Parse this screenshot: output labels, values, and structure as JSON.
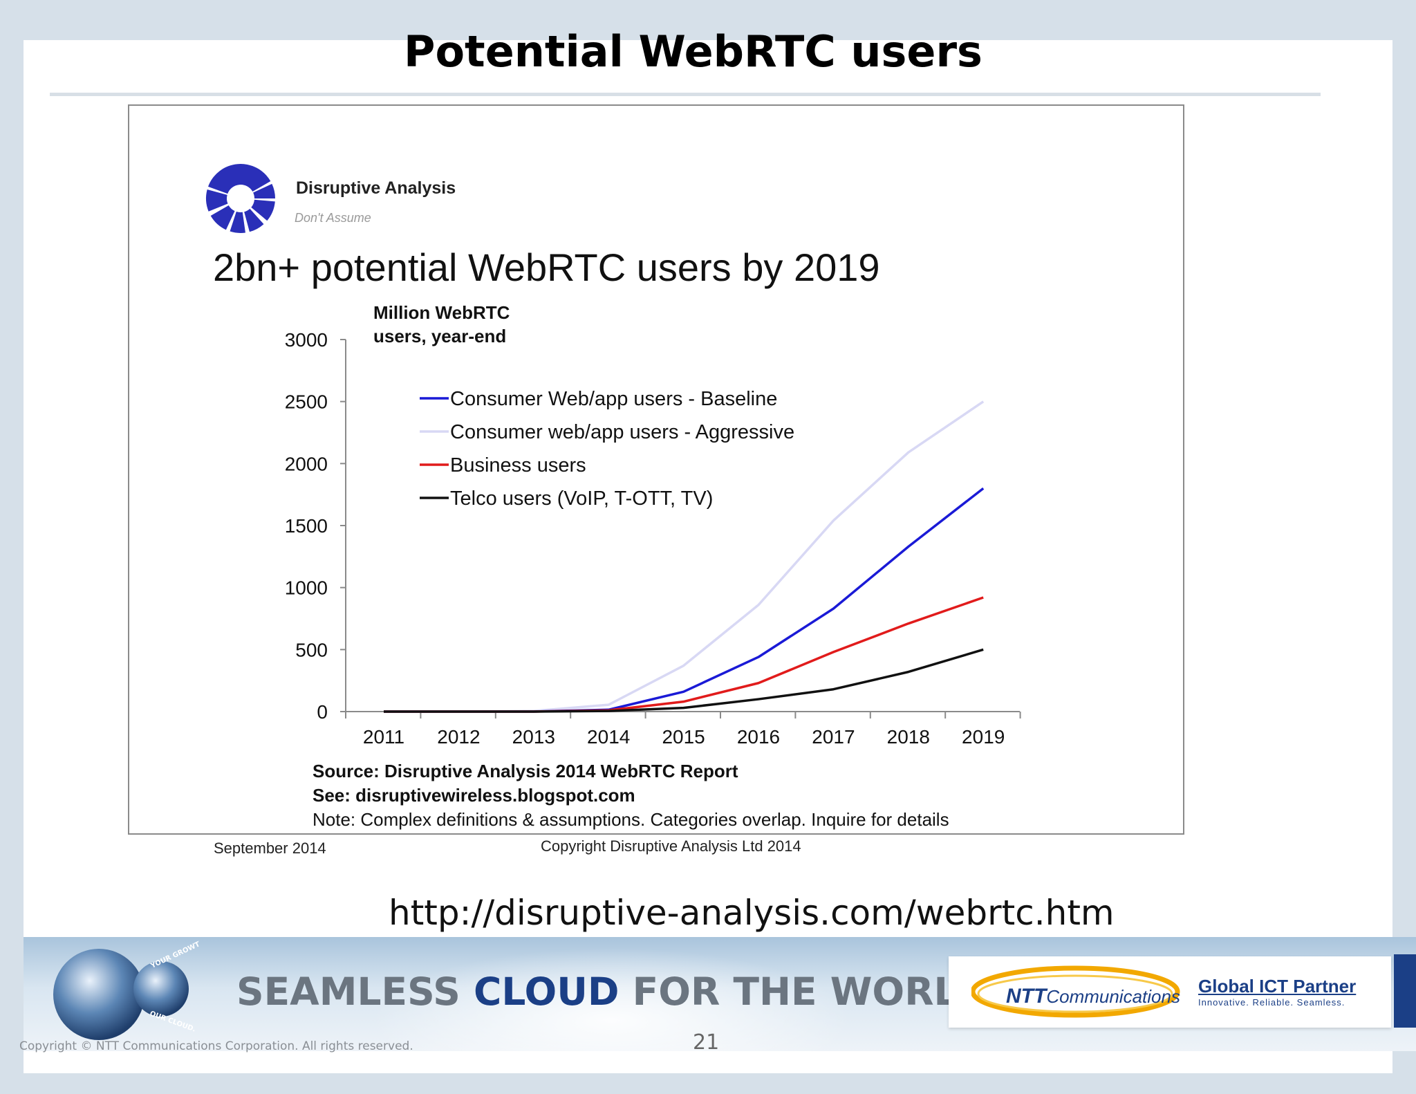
{
  "slide": {
    "title": "Potential WebRTC users",
    "source_url": "http://disruptive-analysis.com/webrtc.htm",
    "page_number": "21",
    "footer_copyright": "Copyright © NTT Communications Corporation. All rights reserved."
  },
  "brand": {
    "name": "Disruptive Analysis",
    "tagline": "Don't Assume",
    "logo_color": "#2a2fb8"
  },
  "banner": {
    "tagline_part1": "SEAMLESS ",
    "tagline_part2": "CLOUD",
    "tagline_part3": " FOR THE WORLD",
    "ntt_bold": "NTT",
    "ntt_rest": "Communications",
    "partner_title": "Global ICT Partner",
    "partner_sub": "Innovative. Reliable. Seamless.",
    "globe_text_1": "YOUR GROWTH.",
    "globe_text_2": "OUR CLOUD."
  },
  "chart_data": {
    "type": "line",
    "title": "2bn+ potential WebRTC users by 2019",
    "ylabel_line1": "Million WebRTC",
    "ylabel_line2": "users, year-end",
    "x": [
      "2011",
      "2012",
      "2013",
      "2014",
      "2015",
      "2016",
      "2017",
      "2018",
      "2019"
    ],
    "ylim": [
      0,
      3000
    ],
    "yticks": [
      0,
      500,
      1000,
      1500,
      2000,
      2500,
      3000
    ],
    "legend_position": "top-left",
    "grid": false,
    "series": [
      {
        "name": "Consumer Web/app users - Baseline",
        "color": "#1a1ad6",
        "values": [
          0,
          0,
          0,
          15,
          160,
          440,
          830,
          1330,
          1800
        ]
      },
      {
        "name": "Consumer web/app users - Aggressive",
        "color": "#d8d8f4",
        "values": [
          0,
          0,
          5,
          55,
          370,
          860,
          1540,
          2090,
          2500
        ]
      },
      {
        "name": "Business users",
        "color": "#e11b1b",
        "values": [
          0,
          0,
          0,
          10,
          80,
          230,
          480,
          710,
          920
        ]
      },
      {
        "name": "Telco users (VoIP, T-OTT, TV)",
        "color": "#111111",
        "values": [
          0,
          0,
          0,
          5,
          30,
          100,
          180,
          320,
          500
        ]
      }
    ],
    "source_line": "Source: Disruptive Analysis 2014 WebRTC Report",
    "see_line": "See: disruptivewireless.blogspot.com",
    "note_line": "Note: Complex definitions & assumptions. Categories overlap. Inquire for details",
    "date": "September 2014",
    "copyright": "Copyright Disruptive Analysis Ltd 2014"
  }
}
